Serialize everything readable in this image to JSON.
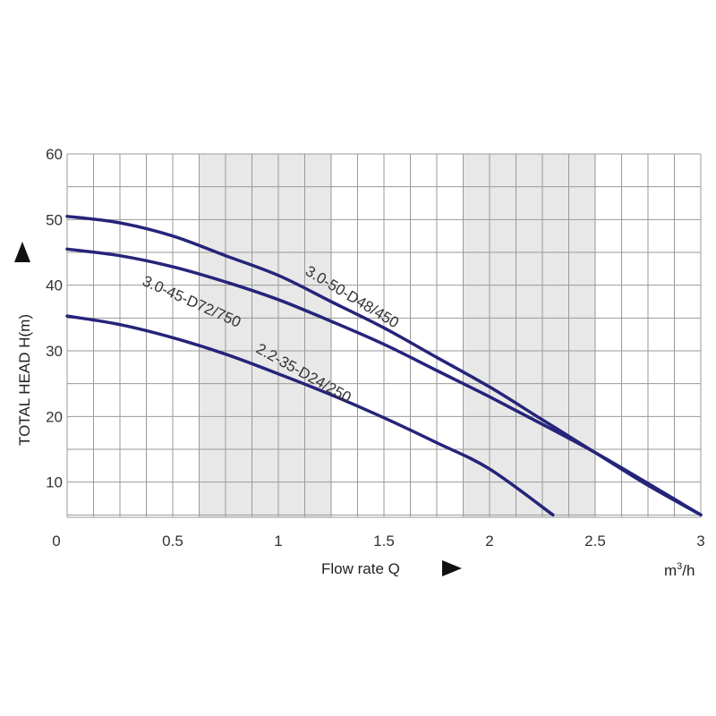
{
  "chart_data": {
    "type": "line",
    "xlabel": "Flow rate Q",
    "xunit": {
      "base": "m",
      "sup": "3",
      "tail": "/h"
    },
    "ylabel": "TOTAL HEAD H(m)",
    "xlim": [
      0,
      3
    ],
    "ylim": [
      0,
      60
    ],
    "x_ticks": [
      "0",
      "0.5",
      "1",
      "1.5",
      "2",
      "2.5",
      "3"
    ],
    "y_ticks": [
      "10",
      "20",
      "30",
      "40",
      "50",
      "60"
    ],
    "grid": true,
    "shaded_x_bands": [
      [
        0.625,
        1.25
      ],
      [
        1.875,
        2.5
      ]
    ],
    "colors": {
      "curve": "#25247a",
      "band": "#e8e8e8",
      "grid": "#9a9a9a"
    },
    "series": [
      {
        "name": "3.0-50-D48/450",
        "x": [
          0,
          0.25,
          0.5,
          0.75,
          1.0,
          1.25,
          1.5,
          1.75,
          2.0,
          2.25,
          2.5,
          2.75,
          3.0
        ],
        "y": [
          50.5,
          49.5,
          47.5,
          44.5,
          41.5,
          37.5,
          33.5,
          29,
          24.5,
          19.5,
          14.5,
          9.5,
          5
        ]
      },
      {
        "name": "3.0-45-D72/750",
        "x": [
          0,
          0.25,
          0.5,
          0.75,
          1.0,
          1.25,
          1.5,
          1.75,
          2.0,
          2.25,
          2.5,
          2.75,
          3.0
        ],
        "y": [
          45.5,
          44.5,
          42.8,
          40.5,
          37.8,
          34.5,
          31,
          27,
          23,
          18.8,
          14.5,
          9.8,
          5
        ]
      },
      {
        "name": "2.2-35-D24/250",
        "x": [
          0,
          0.25,
          0.5,
          0.75,
          1.0,
          1.25,
          1.5,
          1.75,
          2.0,
          2.3
        ],
        "y": [
          35.3,
          34,
          32,
          29.5,
          26.5,
          23.3,
          19.8,
          16,
          12,
          5
        ]
      }
    ]
  }
}
